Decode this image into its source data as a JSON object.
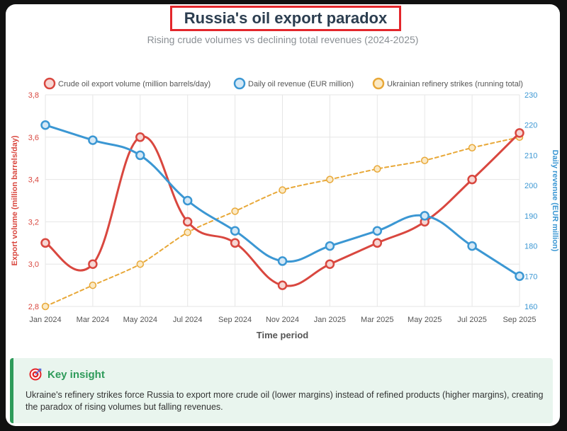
{
  "header": {
    "title": "Russia's oil export paradox",
    "subtitle": "Rising crude volumes vs declining total revenues (2024-2025)"
  },
  "chart_data": {
    "type": "line",
    "title": "Russia's oil export paradox",
    "xlabel": "Time period",
    "ylabel_left": "Export volume (million barrels/day)",
    "ylabel_right": "Daily revenue (EUR million)",
    "categories": [
      "Jan 2024",
      "Mar 2024",
      "May 2024",
      "Jul 2024",
      "Sep 2024",
      "Nov 2024",
      "Jan 2025",
      "Mar 2025",
      "May 2025",
      "Jul 2025",
      "Sep 2025"
    ],
    "ylim_left": [
      2.8,
      3.8
    ],
    "ylim_right": [
      160,
      230
    ],
    "left_ticks": [
      "2,8",
      "3,0",
      "3,2",
      "3,4",
      "3,6",
      "3,8"
    ],
    "right_ticks": [
      "160",
      "170",
      "180",
      "190",
      "200",
      "210",
      "220",
      "230"
    ],
    "grid": true,
    "legend_position": "top",
    "series": [
      {
        "name": "Crude oil export volume (million barrels/day)",
        "axis": "left",
        "color": "#d9473f",
        "style": "solid",
        "values": [
          3.1,
          3.0,
          3.6,
          3.2,
          3.1,
          2.9,
          3.0,
          3.1,
          3.2,
          3.4,
          3.62
        ]
      },
      {
        "name": "Daily oil revenue (EUR million)",
        "axis": "right",
        "color": "#3b97d3",
        "style": "solid",
        "values": [
          220,
          215,
          210,
          195,
          185,
          175,
          180,
          185,
          190,
          180,
          170
        ]
      },
      {
        "name": "Ukrainian refinery strikes (running total)",
        "axis": "left",
        "color": "#e8a838",
        "style": "dashed",
        "values": [
          2.8,
          2.9,
          3.0,
          3.15,
          3.25,
          3.35,
          3.4,
          3.45,
          3.49,
          3.55,
          3.6
        ]
      }
    ]
  },
  "insight": {
    "title": "Key insight",
    "text": "Ukraine's refinery strikes force Russia to export more crude oil (lower margins) instead of refined products (higher margins), creating the paradox of rising volumes but falling revenues."
  }
}
